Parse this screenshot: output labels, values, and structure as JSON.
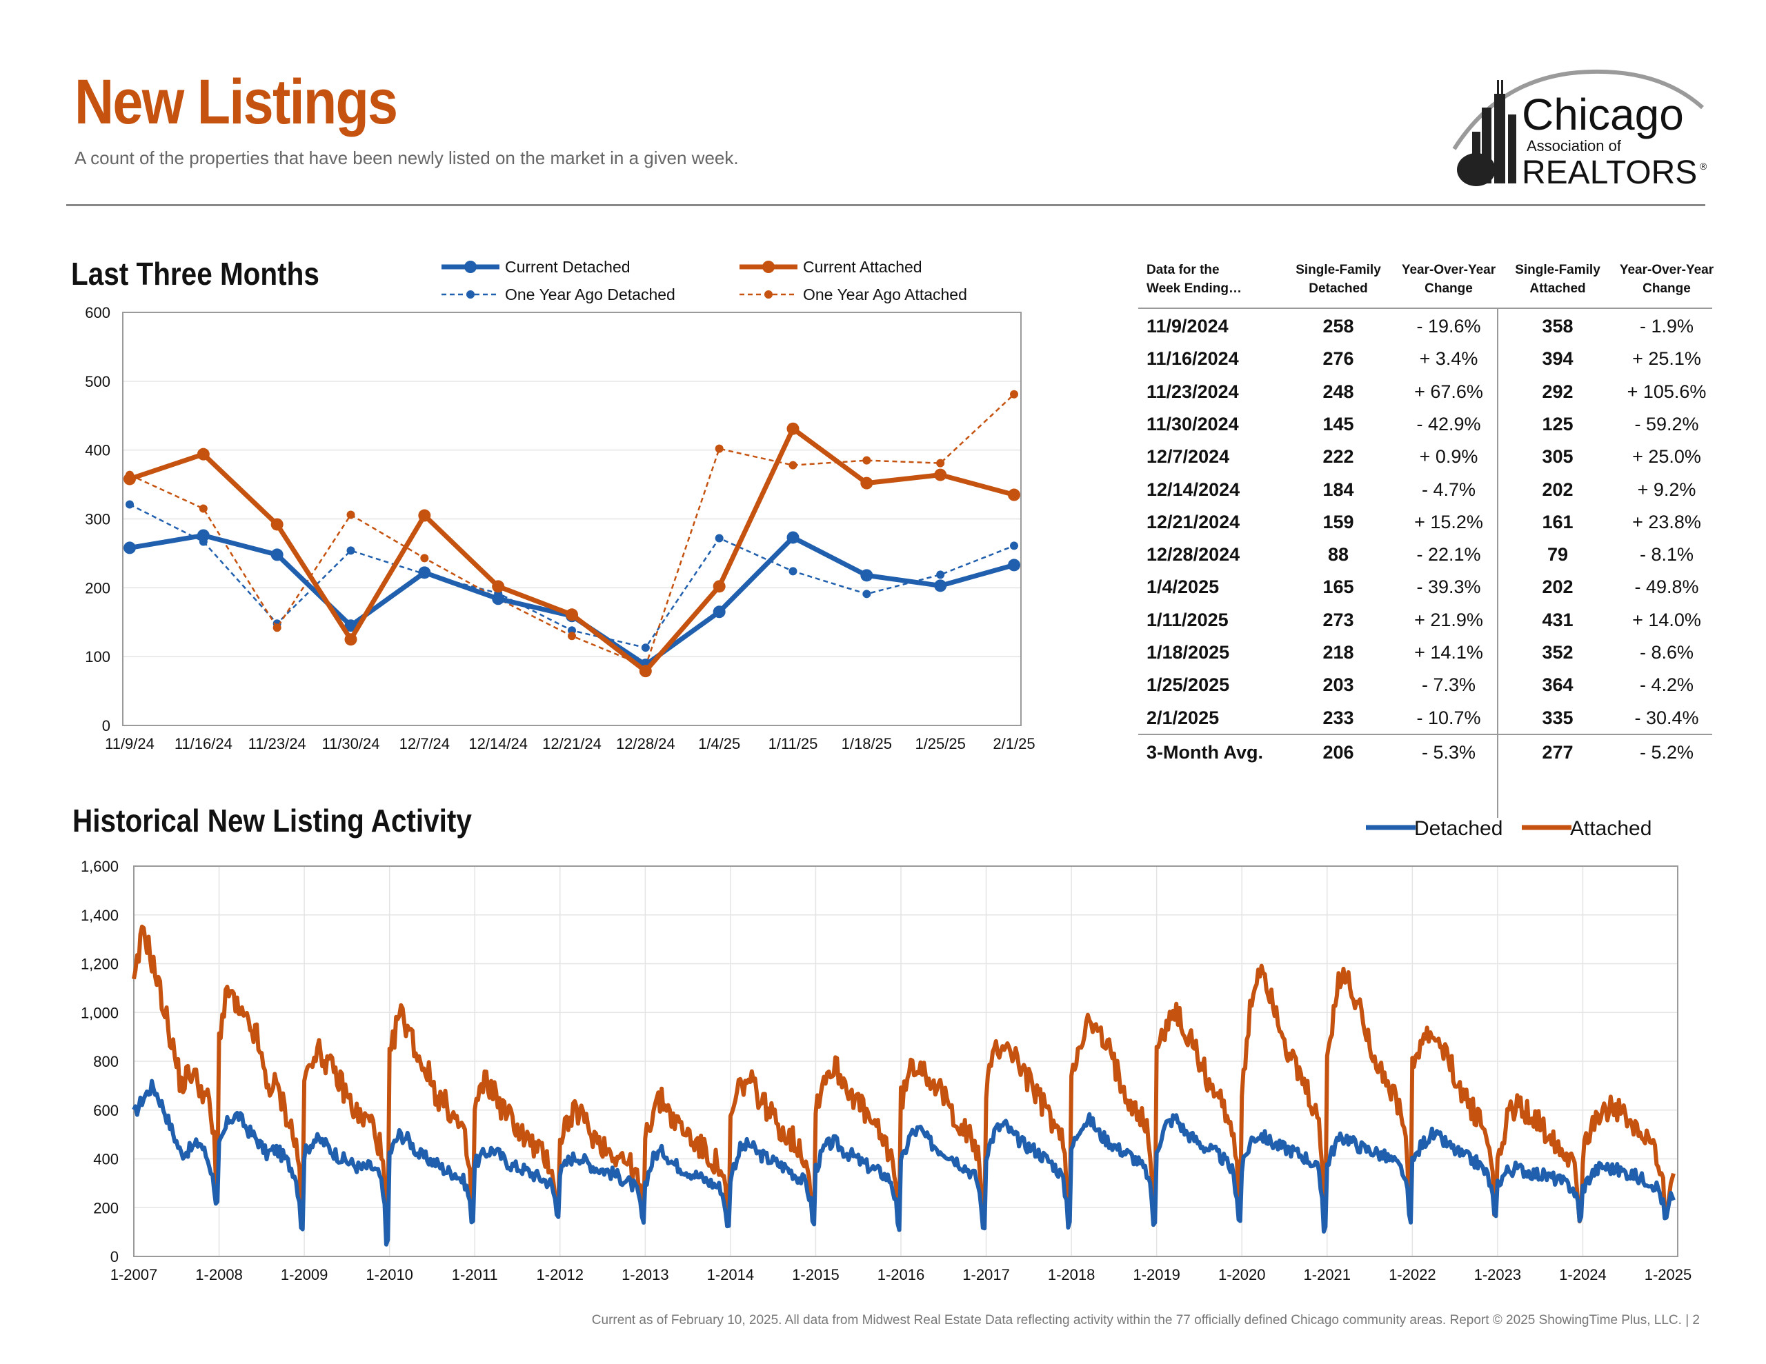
{
  "header": {
    "title": "New Listings",
    "subtitle": "A count of the properties that have been newly listed on the market in a given week."
  },
  "logo": {
    "line1": "Chicago",
    "line2": "Association of",
    "line3": "REALTORS",
    "mark": "®"
  },
  "colors": {
    "blue": "#1f5fad",
    "orange": "#c5520f",
    "title": "#c5520f"
  },
  "chart_data": [
    {
      "type": "line",
      "title": "Last Three Months",
      "categories": [
        "11/9/24",
        "11/16/24",
        "11/23/24",
        "11/30/24",
        "12/7/24",
        "12/14/24",
        "12/21/24",
        "12/28/24",
        "1/4/25",
        "1/11/25",
        "1/18/25",
        "1/25/25",
        "2/1/25"
      ],
      "ylim": [
        0,
        600
      ],
      "yticks": [
        "0",
        "100",
        "200",
        "300",
        "400",
        "500",
        "600"
      ],
      "grid": true,
      "legend_position": "top",
      "series": [
        {
          "name": "Current Detached",
          "style": "solid",
          "color": "#1f5fad",
          "values": [
            258,
            276,
            248,
            145,
            222,
            184,
            159,
            88,
            165,
            273,
            218,
            203,
            233
          ]
        },
        {
          "name": "Current Attached",
          "style": "solid",
          "color": "#c5520f",
          "values": [
            358,
            394,
            292,
            125,
            305,
            202,
            161,
            79,
            202,
            431,
            352,
            364,
            335
          ]
        },
        {
          "name": "One Year Ago Detached",
          "style": "dashed",
          "color": "#1f5fad",
          "values": [
            321,
            267,
            148,
            254,
            220,
            192,
            138,
            113,
            272,
            224,
            191,
            219,
            261
          ]
        },
        {
          "name": "One Year Ago Attached",
          "style": "dashed",
          "color": "#c5520f",
          "values": [
            364,
            315,
            142,
            306,
            243,
            184,
            130,
            86,
            402,
            378,
            385,
            381,
            481
          ]
        }
      ]
    },
    {
      "type": "line",
      "title": "Historical New Listing Activity",
      "xticks": [
        "1-2007",
        "1-2008",
        "1-2009",
        "1-2010",
        "1-2011",
        "1-2012",
        "1-2013",
        "1-2014",
        "1-2015",
        "1-2016",
        "1-2017",
        "1-2018",
        "1-2019",
        "1-2020",
        "1-2021",
        "1-2022",
        "1-2023",
        "1-2024",
        "1-2025"
      ],
      "ylim": [
        0,
        1600
      ],
      "yticks": [
        "0",
        "200",
        "400",
        "600",
        "800",
        "1,000",
        "1,200",
        "1,400",
        "1,600"
      ],
      "grid": true,
      "legend_position": "top-right",
      "series": [
        {
          "name": "Detached",
          "color": "#1f5fad",
          "yearly_points": [
            [
              580,
              650,
              700,
              620,
              520,
              420,
              440,
              470,
              380,
              200
            ],
            [
              450,
              560,
              580,
              520,
              480,
              420,
              440,
              400,
              340,
              120
            ],
            [
              420,
              480,
              470,
              430,
              400,
              380,
              360,
              370,
              330,
              60
            ],
            [
              420,
              500,
              480,
              420,
              400,
              380,
              350,
              340,
              300,
              150
            ],
            [
              380,
              420,
              440,
              400,
              370,
              360,
              340,
              320,
              300,
              170
            ],
            [
              340,
              400,
              410,
              380,
              360,
              350,
              330,
              310,
              280,
              140
            ],
            [
              300,
              420,
              430,
              380,
              360,
              340,
              320,
              300,
              280,
              110
            ],
            [
              330,
              440,
              460,
              420,
              400,
              380,
              360,
              330,
              300,
              130
            ],
            [
              360,
              450,
              470,
              430,
              410,
              380,
              360,
              340,
              310,
              110
            ],
            [
              380,
              500,
              520,
              470,
              440,
              420,
              390,
              360,
              320,
              110
            ],
            [
              420,
              520,
              540,
              490,
              460,
              440,
              410,
              380,
              330,
              120
            ],
            [
              440,
              540,
              560,
              500,
              470,
              440,
              420,
              390,
              340,
              130
            ],
            [
              440,
              540,
              570,
              510,
              480,
              450,
              430,
              400,
              350,
              140
            ],
            [
              360,
              480,
              500,
              470,
              450,
              440,
              420,
              400,
              360,
              110
            ],
            [
              380,
              470,
              490,
              460,
              440,
              430,
              410,
              390,
              350,
              150
            ],
            [
              380,
              460,
              500,
              480,
              450,
              420,
              400,
              380,
              330,
              150
            ],
            [
              300,
              350,
              360,
              350,
              340,
              330,
              320,
              300,
              280,
              150
            ],
            [
              280,
              340,
              370,
              360,
              350,
              340,
              320,
              310,
              280,
              140
            ]
          ],
          "final": [
            260,
            230
          ]
        },
        {
          "name": "Attached",
          "color": "#c5520f",
          "yearly_points": [
            [
              1100,
              1350,
              1200,
              1050,
              880,
              700,
              760,
              700,
              620,
              300
            ],
            [
              900,
              1100,
              1000,
              950,
              900,
              700,
              700,
              600,
              480,
              220
            ],
            [
              700,
              850,
              820,
              760,
              700,
              620,
              560,
              560,
              450,
              130
            ],
            [
              800,
              1000,
              940,
              820,
              760,
              660,
              620,
              560,
              470,
              180
            ],
            [
              600,
              720,
              680,
              600,
              560,
              500,
              460,
              420,
              380,
              180
            ],
            [
              500,
              560,
              600,
              520,
              480,
              440,
              420,
              390,
              340,
              150
            ],
            [
              500,
              620,
              640,
              560,
              520,
              480,
              440,
              400,
              360,
              130
            ],
            [
              560,
              700,
              720,
              660,
              600,
              540,
              500,
              460,
              400,
              160
            ],
            [
              620,
              740,
              780,
              720,
              660,
              600,
              540,
              480,
              420,
              160
            ],
            [
              640,
              760,
              800,
              740,
              680,
              620,
              560,
              500,
              440,
              160
            ],
            [
              700,
              840,
              880,
              820,
              760,
              680,
              620,
              560,
              480,
              160
            ],
            [
              760,
              900,
              960,
              900,
              840,
              740,
              660,
              600,
              520,
              160
            ],
            [
              820,
              960,
              1000,
              920,
              860,
              760,
              680,
              620,
              540,
              170
            ],
            [
              640,
              1050,
              1200,
              1080,
              960,
              820,
              740,
              660,
              560,
              180
            ],
            [
              800,
              1100,
              1150,
              1050,
              960,
              820,
              740,
              660,
              560,
              200
            ],
            [
              760,
              880,
              900,
              860,
              780,
              700,
              620,
              560,
              480,
              180
            ],
            [
              400,
              560,
              620,
              600,
              560,
              520,
              480,
              440,
              400,
              150
            ],
            [
              400,
              560,
              600,
              620,
              580,
              540,
              500,
              460,
              420,
              160
            ]
          ],
          "final": [
            300,
            340
          ]
        }
      ]
    }
  ],
  "table": {
    "headers": [
      [
        "Data for the",
        "Week Ending…"
      ],
      [
        "Single-Family",
        "Detached"
      ],
      [
        "Year-Over-Year",
        "Change"
      ],
      [
        "Single-Family",
        "Attached"
      ],
      [
        "Year-Over-Year",
        "Change"
      ]
    ],
    "rows": [
      [
        "11/9/2024",
        "258",
        "- 19.6%",
        "358",
        "- 1.9%"
      ],
      [
        "11/16/2024",
        "276",
        "+ 3.4%",
        "394",
        "+ 25.1%"
      ],
      [
        "11/23/2024",
        "248",
        "+ 67.6%",
        "292",
        "+ 105.6%"
      ],
      [
        "11/30/2024",
        "145",
        "- 42.9%",
        "125",
        "- 59.2%"
      ],
      [
        "12/7/2024",
        "222",
        "+ 0.9%",
        "305",
        "+ 25.0%"
      ],
      [
        "12/14/2024",
        "184",
        "- 4.7%",
        "202",
        "+ 9.2%"
      ],
      [
        "12/21/2024",
        "159",
        "+ 15.2%",
        "161",
        "+ 23.8%"
      ],
      [
        "12/28/2024",
        "88",
        "- 22.1%",
        "79",
        "- 8.1%"
      ],
      [
        "1/4/2025",
        "165",
        "- 39.3%",
        "202",
        "- 49.8%"
      ],
      [
        "1/11/2025",
        "273",
        "+ 21.9%",
        "431",
        "+ 14.0%"
      ],
      [
        "1/18/2025",
        "218",
        "+ 14.1%",
        "352",
        "- 8.6%"
      ],
      [
        "1/25/2025",
        "203",
        "- 7.3%",
        "364",
        "- 4.2%"
      ],
      [
        "2/1/2025",
        "233",
        "- 10.7%",
        "335",
        "- 30.4%"
      ]
    ],
    "avg": [
      "3-Month Avg.",
      "206",
      "- 5.3%",
      "277",
      "- 5.2%"
    ]
  },
  "footer": "Current as of February 10, 2025.  All data from Midwest Real Estate Data reflecting activity within the 77 officially defined Chicago community areas. Report © 2025 ShowingTime Plus, LLC.  |  2"
}
